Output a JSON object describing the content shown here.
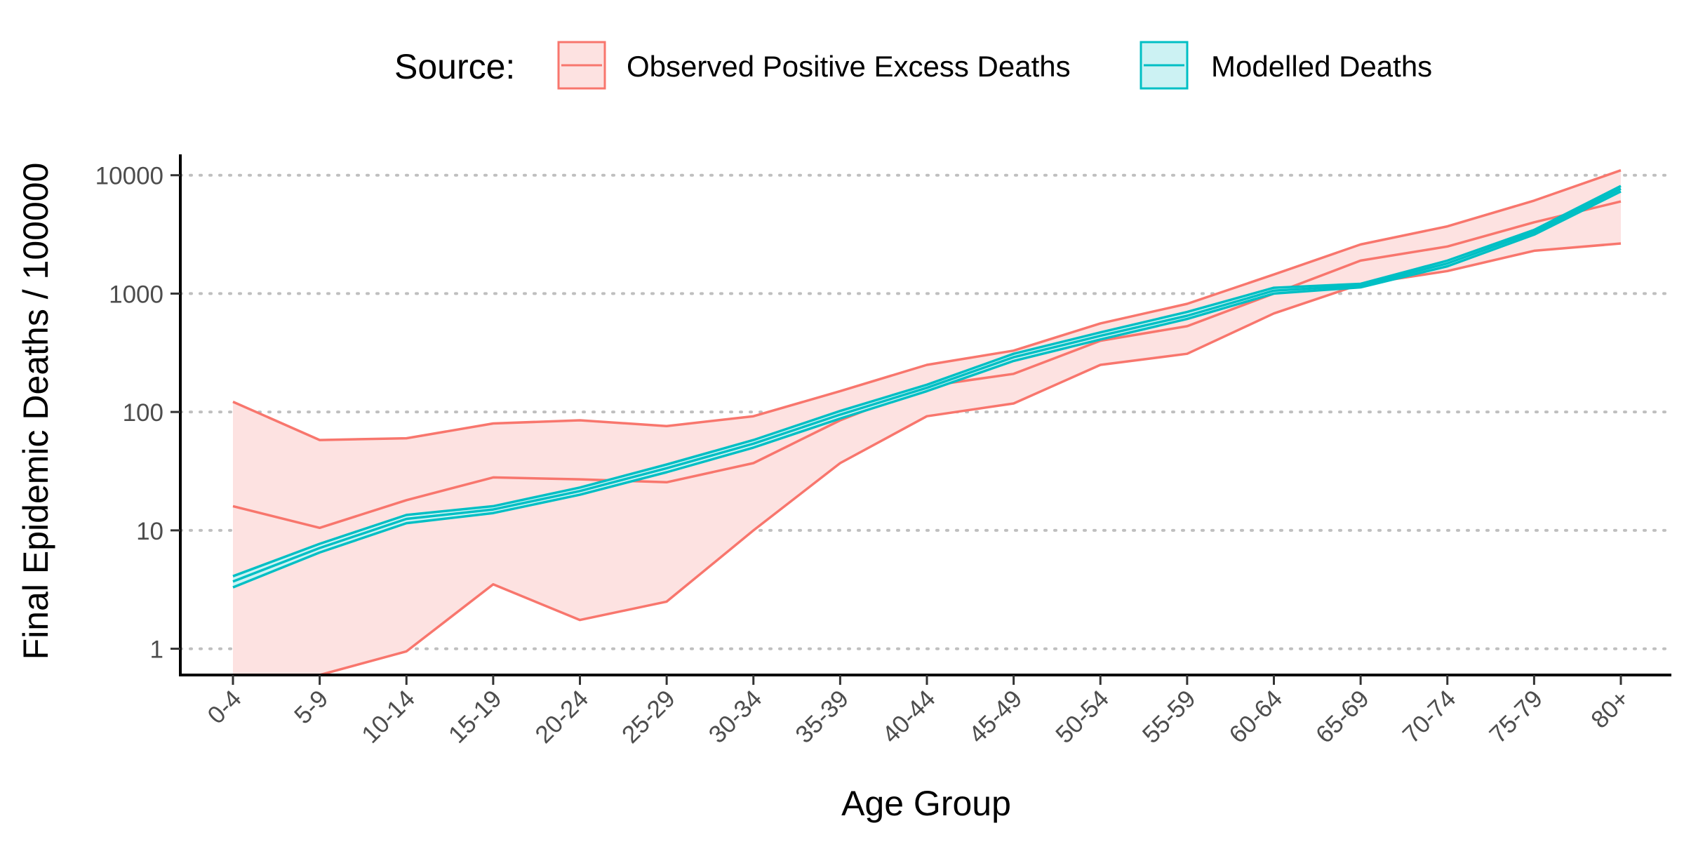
{
  "chart_data": {
    "type": "line",
    "xlabel": "Age Group",
    "ylabel": "Final Epidemic Deaths / 100000",
    "y_scale": "log10",
    "ylim": [
      0.6,
      15000
    ],
    "grid": "horizontal dotted major gridlines",
    "legend_placement": "top",
    "categories": [
      "0-4",
      "5-9",
      "10-14",
      "15-19",
      "20-24",
      "25-29",
      "30-34",
      "35-39",
      "40-44",
      "45-49",
      "50-54",
      "55-59",
      "60-64",
      "65-69",
      "70-74",
      "75-79",
      "80+"
    ],
    "y_ticks": [
      {
        "value": 1,
        "label": "1"
      },
      {
        "value": 10,
        "label": "10"
      },
      {
        "value": 100,
        "label": "100"
      },
      {
        "value": 1000,
        "label": "1000"
      },
      {
        "value": 10000,
        "label": "10000"
      }
    ],
    "series": [
      {
        "name": "Observed Positive Excess Deaths",
        "color": "#F8766D",
        "fill": "#FDE2E1",
        "lower": [
          0.4,
          0.6,
          0.95,
          3.5,
          1.75,
          2.5,
          10,
          37,
          92,
          118,
          250,
          310,
          680,
          1200,
          1550,
          2300,
          2650
        ],
        "median": [
          16,
          10.5,
          18,
          28,
          27,
          25.5,
          37,
          85,
          165,
          210,
          400,
          530,
          1000,
          1900,
          2500,
          4000,
          6000
        ],
        "upper": [
          122,
          58,
          60,
          80,
          85,
          76,
          92,
          150,
          250,
          330,
          560,
          820,
          1450,
          2600,
          3700,
          6100,
          11000
        ]
      },
      {
        "name": "Modelled Deaths",
        "color": "#00BFC4",
        "fill": "#CCF2F3",
        "lower": [
          3.3,
          6.5,
          11.5,
          14,
          20,
          31,
          50,
          88,
          150,
          270,
          410,
          610,
          1000,
          1130,
          1700,
          3150,
          7300
        ],
        "median": [
          3.7,
          7.1,
          12.5,
          15,
          21.5,
          33.5,
          54,
          95,
          160,
          290,
          440,
          650,
          1060,
          1170,
          1800,
          3300,
          7700
        ],
        "upper": [
          4.1,
          7.7,
          13.5,
          16,
          23,
          36,
          58,
          102,
          170,
          310,
          470,
          700,
          1120,
          1210,
          1900,
          3450,
          8100
        ]
      }
    ]
  },
  "legend": {
    "title": "Source:"
  }
}
